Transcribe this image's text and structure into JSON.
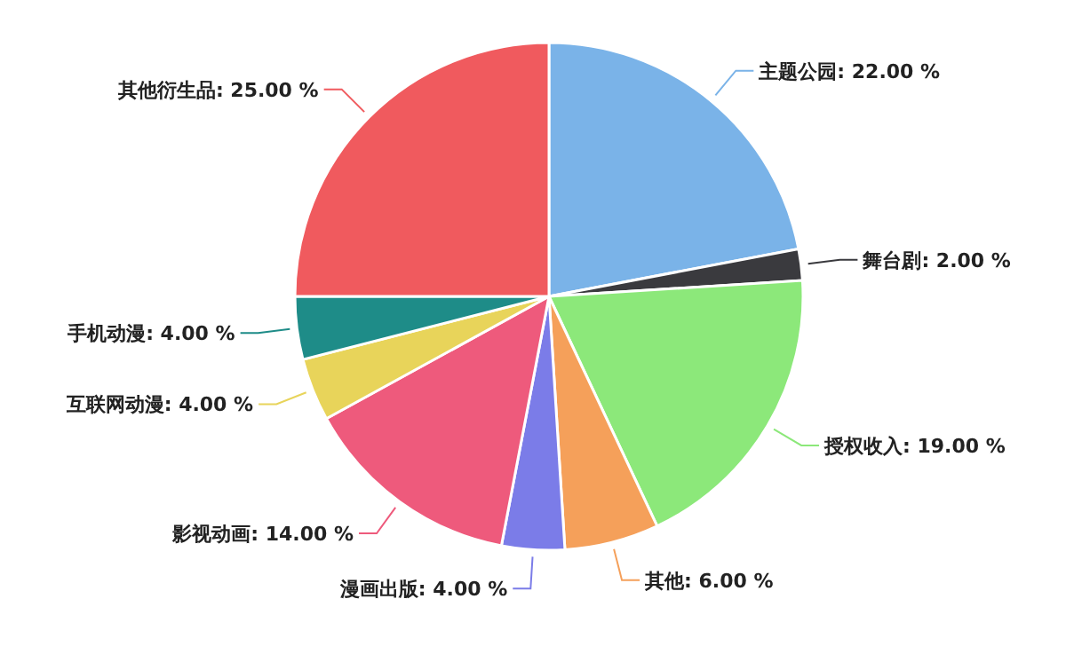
{
  "chart_data": {
    "type": "pie",
    "categories": [
      "主题公园",
      "舞台剧",
      "授权收入",
      "其他",
      "漫画出版",
      "影视动画",
      "互联网动漫",
      "手机动漫",
      "其他衍生品"
    ],
    "values": [
      22,
      2,
      19,
      6,
      4,
      14,
      4,
      4,
      25
    ],
    "value_labels": [
      "22.00 %",
      "2.00 %",
      "19.00 %",
      "6.00 %",
      "4.00 %",
      "14.00 %",
      "4.00 %",
      "4.00 %",
      "25.00 %"
    ],
    "colors": [
      "#7ab3e8",
      "#3a3a3e",
      "#8ce87a",
      "#f5a05a",
      "#7b7ce8",
      "#ee5a7c",
      "#e8d45a",
      "#1e8c88",
      "#f05a5e"
    ]
  }
}
